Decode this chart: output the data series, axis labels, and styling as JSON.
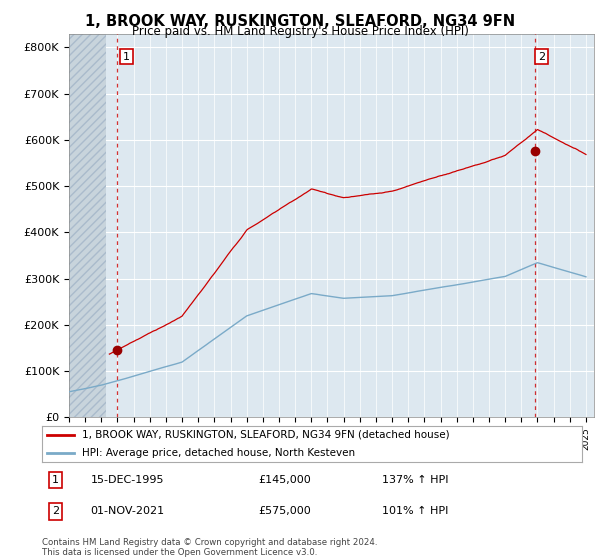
{
  "title": "1, BROOK WAY, RUSKINGTON, SLEAFORD, NG34 9FN",
  "subtitle": "Price paid vs. HM Land Registry's House Price Index (HPI)",
  "ylim": [
    0,
    830000
  ],
  "yticks": [
    0,
    100000,
    200000,
    300000,
    400000,
    500000,
    600000,
    700000,
    800000
  ],
  "ytick_labels": [
    "£0",
    "£100K",
    "£200K",
    "£300K",
    "£400K",
    "£500K",
    "£600K",
    "£700K",
    "£800K"
  ],
  "background_color": "#ffffff",
  "plot_bg_color": "#dde8f0",
  "hatch_bg_color": "#c8d4dc",
  "grid_color": "#ffffff",
  "red_line_color": "#cc0000",
  "blue_line_color": "#7aaac8",
  "purchase1_x": 1995.958,
  "purchase1_y": 145000,
  "purchase2_x": 2021.833,
  "purchase2_y": 575000,
  "legend_red": "1, BROOK WAY, RUSKINGTON, SLEAFORD, NG34 9FN (detached house)",
  "legend_blue": "HPI: Average price, detached house, North Kesteven",
  "footnote": "Contains HM Land Registry data © Crown copyright and database right 2024.\nThis data is licensed under the Open Government Licence v3.0.",
  "xmin": 1993.0,
  "xmax": 2025.5,
  "hatch_xmax": 1995.3
}
